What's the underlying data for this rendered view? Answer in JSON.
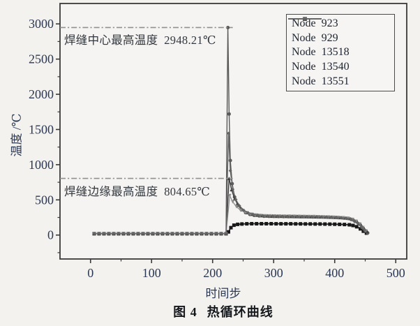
{
  "colors": {
    "background": "#f3f2ef",
    "axis": "#3a3a3a",
    "tick_label": "#2b3854",
    "annotation_line": "#909090",
    "annotation_text": "#33383f",
    "caption_text": "#14181c"
  },
  "axes": {
    "xlabel": "时间步",
    "ylabel": "温度 /℃",
    "x_ticks": [
      0,
      100,
      200,
      300,
      400,
      500
    ],
    "x_minor_ticks": [
      50,
      150,
      250,
      350,
      450
    ],
    "y_ticks": [
      0,
      500,
      1000,
      1500,
      2000,
      2500,
      3000
    ],
    "y_minor_ticks": [
      -250,
      250,
      750,
      1250,
      1750,
      2250,
      2750
    ]
  },
  "annotations": [
    {
      "id": "weld-center-max",
      "text": "焊缝中心最高温度  2948.21℃",
      "value": 2948.21,
      "line_y": 2948.21,
      "line_t_end": 233
    },
    {
      "id": "weld-edge-max",
      "text": "焊缝边缘最高温度  804.65℃",
      "value": 804.65,
      "line_y": 804.65,
      "line_t_end": 233
    }
  ],
  "caption": {
    "number": "图 4",
    "title": "热循环曲线"
  },
  "chart_data": {
    "type": "line",
    "title": "热循环曲线",
    "xlabel": "时间步",
    "ylabel": "温度 /℃",
    "xlim": [
      0,
      500
    ],
    "ylim": [
      0,
      3000
    ],
    "draw_xlim": [
      -50,
      518
    ],
    "draw_ylim": [
      -340,
      3290
    ],
    "grid": false,
    "legend_position": "top-right",
    "baseline_segment": {
      "temp": 20,
      "t_start": 6,
      "t_end": 222,
      "t_step": 8,
      "applies_to": "all_series"
    },
    "series": [
      {
        "name": "Node 923",
        "label": "Node  923",
        "color": "#181818",
        "marker": "square",
        "line_width": 1.6,
        "points": [
          [
            226,
            45
          ],
          [
            230,
            105
          ],
          [
            235,
            140
          ],
          [
            241,
            152
          ],
          [
            248,
            157
          ],
          [
            256,
            160
          ],
          [
            264,
            161
          ],
          [
            272,
            161
          ],
          [
            280,
            161
          ],
          [
            288,
            161
          ],
          [
            296,
            161
          ],
          [
            304,
            160
          ],
          [
            312,
            160
          ],
          [
            320,
            160
          ],
          [
            328,
            160
          ],
          [
            336,
            159
          ],
          [
            344,
            159
          ],
          [
            352,
            158
          ],
          [
            360,
            158
          ],
          [
            368,
            157
          ],
          [
            376,
            157
          ],
          [
            384,
            156
          ],
          [
            392,
            155
          ],
          [
            400,
            154
          ],
          [
            408,
            152
          ],
          [
            416,
            150
          ],
          [
            424,
            146
          ],
          [
            430,
            136
          ],
          [
            436,
            118
          ],
          [
            442,
            88
          ],
          [
            447,
            55
          ],
          [
            452,
            28
          ]
        ]
      },
      {
        "name": "Node 929",
        "label": "Node  929",
        "color": "#585858",
        "marker": "circle",
        "line_width": 1.4,
        "points": [
          [
            225,
            2948.21
          ],
          [
            227,
            1720
          ],
          [
            229,
            1060
          ],
          [
            232,
            730
          ],
          [
            236,
            540
          ],
          [
            241,
            430
          ],
          [
            247,
            360
          ],
          [
            254,
            318
          ],
          [
            261,
            294
          ],
          [
            268,
            280
          ],
          [
            276,
            272
          ],
          [
            284,
            268
          ],
          [
            292,
            266
          ],
          [
            300,
            265
          ],
          [
            308,
            264
          ],
          [
            316,
            263
          ],
          [
            324,
            262
          ],
          [
            332,
            262
          ],
          [
            340,
            261
          ],
          [
            348,
            260
          ],
          [
            356,
            259
          ],
          [
            364,
            258
          ],
          [
            372,
            257
          ],
          [
            380,
            256
          ],
          [
            388,
            254
          ],
          [
            396,
            252
          ],
          [
            404,
            249
          ],
          [
            412,
            245
          ],
          [
            420,
            238
          ],
          [
            427,
            222
          ],
          [
            433,
            196
          ],
          [
            439,
            158
          ],
          [
            445,
            108
          ],
          [
            450,
            60
          ],
          [
            454,
            30
          ]
        ]
      },
      {
        "name": "Node 13518",
        "label": "Node  13518",
        "color": "#3c3c3c",
        "marker": "triangle-up",
        "line_width": 1.4,
        "points": [
          [
            227,
            804.65
          ],
          [
            231,
            645
          ],
          [
            236,
            515
          ],
          [
            242,
            425
          ],
          [
            249,
            360
          ],
          [
            256,
            320
          ],
          [
            264,
            296
          ],
          [
            272,
            283
          ],
          [
            280,
            276
          ],
          [
            288,
            272
          ],
          [
            296,
            269
          ],
          [
            304,
            268
          ],
          [
            312,
            267
          ],
          [
            320,
            266
          ],
          [
            328,
            265
          ],
          [
            336,
            264
          ],
          [
            344,
            263
          ],
          [
            352,
            262
          ],
          [
            360,
            261
          ],
          [
            368,
            260
          ],
          [
            376,
            259
          ],
          [
            384,
            257
          ],
          [
            392,
            255
          ],
          [
            400,
            252
          ],
          [
            408,
            249
          ],
          [
            416,
            244
          ],
          [
            424,
            236
          ],
          [
            431,
            218
          ],
          [
            437,
            190
          ],
          [
            443,
            150
          ],
          [
            448,
            100
          ],
          [
            453,
            55
          ]
        ]
      },
      {
        "name": "Node 13540",
        "label": "Node  13540",
        "color": "#8c8c8c",
        "marker": "triangle-down",
        "line_width": 1.3,
        "points": [
          [
            228,
            560
          ],
          [
            233,
            472
          ],
          [
            239,
            402
          ],
          [
            246,
            352
          ],
          [
            254,
            318
          ],
          [
            262,
            296
          ],
          [
            270,
            284
          ],
          [
            278,
            277
          ],
          [
            286,
            273
          ],
          [
            294,
            271
          ],
          [
            302,
            270
          ],
          [
            310,
            269
          ],
          [
            318,
            268
          ],
          [
            326,
            267
          ],
          [
            334,
            266
          ],
          [
            342,
            265
          ],
          [
            350,
            264
          ],
          [
            358,
            263
          ],
          [
            366,
            262
          ],
          [
            374,
            260
          ],
          [
            382,
            258
          ],
          [
            390,
            256
          ],
          [
            398,
            253
          ],
          [
            406,
            250
          ],
          [
            414,
            245
          ],
          [
            422,
            238
          ],
          [
            429,
            222
          ],
          [
            435,
            196
          ],
          [
            441,
            156
          ],
          [
            446,
            106
          ],
          [
            451,
            58
          ]
        ]
      },
      {
        "name": "Node 13551",
        "label": "Node  13551",
        "color": "#636363",
        "marker": "diamond",
        "line_width": 1.4,
        "points": [
          [
            226,
            1445
          ],
          [
            229,
            915
          ],
          [
            233,
            650
          ],
          [
            238,
            505
          ],
          [
            244,
            415
          ],
          [
            251,
            352
          ],
          [
            258,
            318
          ],
          [
            266,
            297
          ],
          [
            274,
            285
          ],
          [
            282,
            278
          ],
          [
            290,
            274
          ],
          [
            298,
            272
          ],
          [
            306,
            270
          ],
          [
            314,
            269
          ],
          [
            322,
            268
          ],
          [
            330,
            267
          ],
          [
            338,
            266
          ],
          [
            346,
            265
          ],
          [
            354,
            264
          ],
          [
            362,
            263
          ],
          [
            370,
            261
          ],
          [
            378,
            259
          ],
          [
            386,
            257
          ],
          [
            394,
            255
          ],
          [
            402,
            252
          ],
          [
            410,
            248
          ],
          [
            418,
            242
          ],
          [
            426,
            230
          ],
          [
            432,
            206
          ],
          [
            438,
            168
          ],
          [
            444,
            118
          ],
          [
            449,
            68
          ]
        ]
      }
    ]
  }
}
